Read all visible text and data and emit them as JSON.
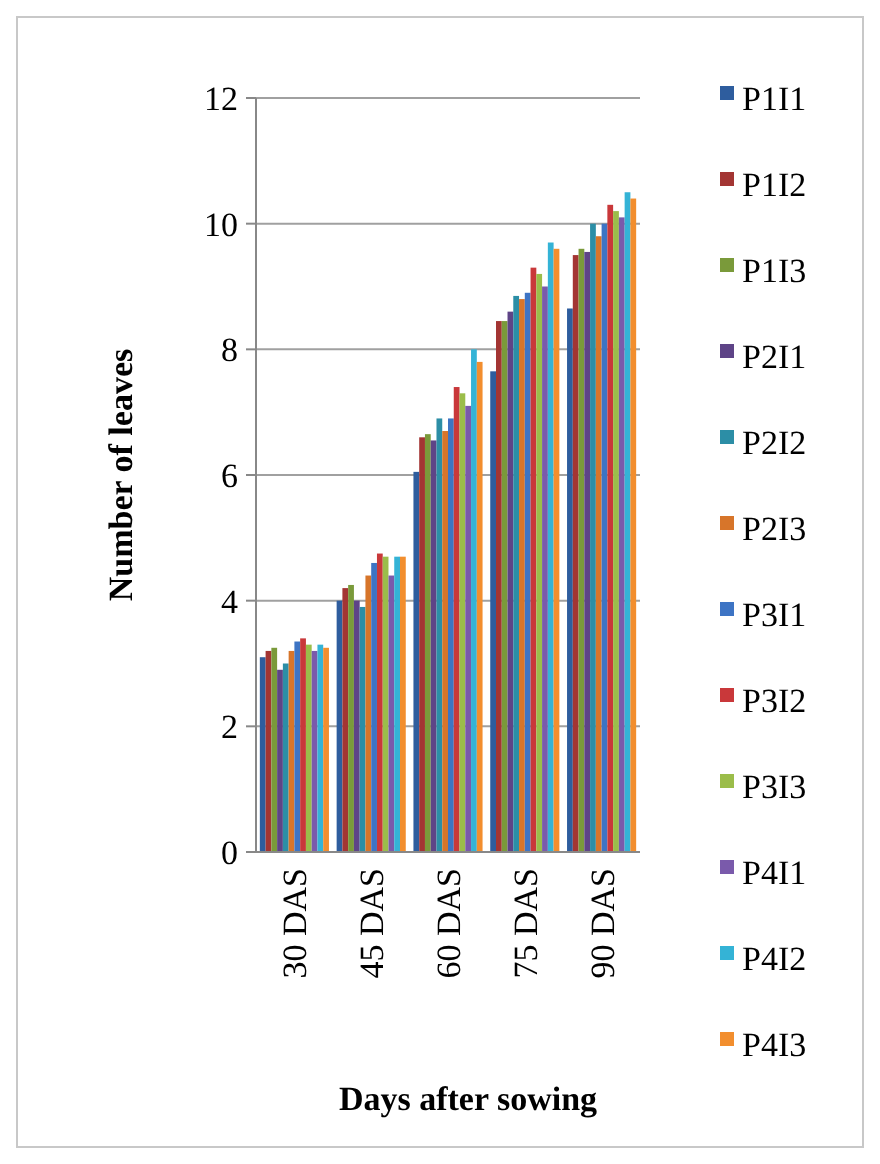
{
  "chart_data": {
    "type": "bar",
    "xlabel": "Days after sowing",
    "ylabel": "Number of leaves",
    "categories": [
      "30 DAS",
      "45 DAS",
      "60 DAS",
      "75 DAS",
      "90 DAS"
    ],
    "ylim": [
      0,
      12
    ],
    "yticks": [
      0,
      2,
      4,
      6,
      8,
      10,
      12
    ],
    "grid": "y",
    "legend": "right",
    "series": [
      {
        "name": "P1I1",
        "color": "#2e5d9e",
        "values": [
          3.1,
          4.0,
          6.05,
          7.65,
          8.65
        ]
      },
      {
        "name": "P1I2",
        "color": "#a33533",
        "values": [
          3.2,
          4.2,
          6.6,
          8.45,
          9.5
        ]
      },
      {
        "name": "P1I3",
        "color": "#7a9a3a",
        "values": [
          3.25,
          4.25,
          6.65,
          8.45,
          9.6
        ]
      },
      {
        "name": "P2I1",
        "color": "#5e4487",
        "values": [
          2.9,
          4.0,
          6.55,
          8.6,
          9.55
        ]
      },
      {
        "name": "P2I2",
        "color": "#2c8ea6",
        "values": [
          3.0,
          3.9,
          6.9,
          8.85,
          10.0
        ]
      },
      {
        "name": "P2I3",
        "color": "#d7752a",
        "values": [
          3.2,
          4.4,
          6.7,
          8.8,
          9.8
        ]
      },
      {
        "name": "P3I1",
        "color": "#3d74c4",
        "values": [
          3.35,
          4.6,
          6.9,
          8.9,
          10.0
        ]
      },
      {
        "name": "P3I2",
        "color": "#c9383a",
        "values": [
          3.4,
          4.75,
          7.4,
          9.3,
          10.3
        ]
      },
      {
        "name": "P3I3",
        "color": "#9bbd4a",
        "values": [
          3.3,
          4.7,
          7.3,
          9.2,
          10.2
        ]
      },
      {
        "name": "P4I1",
        "color": "#7a5aab",
        "values": [
          3.2,
          4.4,
          7.1,
          9.0,
          10.1
        ]
      },
      {
        "name": "P4I2",
        "color": "#34b3d6",
        "values": [
          3.3,
          4.7,
          8.0,
          9.7,
          10.5
        ]
      },
      {
        "name": "P4I3",
        "color": "#f28e2e",
        "values": [
          3.25,
          4.7,
          7.8,
          9.6,
          10.4
        ]
      }
    ]
  }
}
